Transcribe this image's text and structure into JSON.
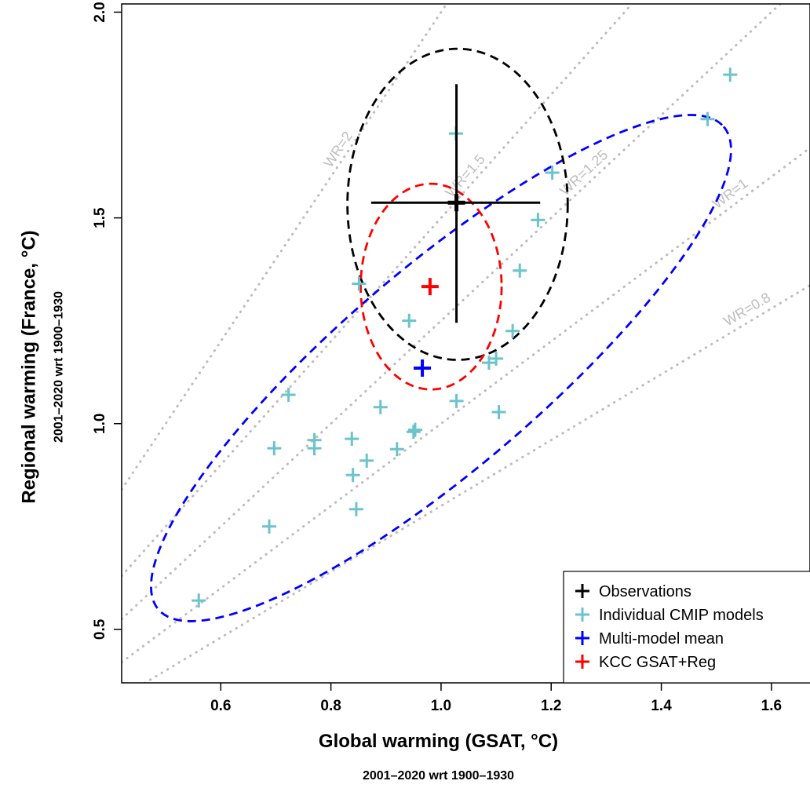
{
  "chart_data": {
    "type": "scatter",
    "xlabel": "Global warming (GSAT, °C)",
    "xlabel_sub": "2001–2020  wrt  1900–1930",
    "ylabel": "Regional warming (France, °C)",
    "ylabel_sub": "2001–2020  wrt  1900–1930",
    "xlim": [
      0.42,
      1.67
    ],
    "ylim": [
      0.37,
      2.02
    ],
    "x_ticks": [
      {
        "value": 0.6,
        "label": "0.6"
      },
      {
        "value": 0.8,
        "label": "0.8"
      },
      {
        "value": 1.0,
        "label": "1.0"
      },
      {
        "value": 1.2,
        "label": "1.2"
      },
      {
        "value": 1.4,
        "label": "1.4"
      },
      {
        "value": 1.6,
        "label": "1.6"
      }
    ],
    "y_ticks": [
      {
        "value": 0.5,
        "label": "0.5"
      },
      {
        "value": 1.0,
        "label": "1.0"
      },
      {
        "value": 1.5,
        "label": "1.5"
      },
      {
        "value": 2.0,
        "label": "2.0"
      }
    ],
    "grid": false,
    "legend_position": "bottom-right",
    "reference_lines": [
      {
        "label": "WR=2",
        "slope": 2
      },
      {
        "label": "WR=1.5",
        "slope": 1.5
      },
      {
        "label": "WR=1.25",
        "slope": 1.25
      },
      {
        "label": "WR=1",
        "slope": 1
      },
      {
        "label": "WR=0.8",
        "slope": 0.8
      }
    ],
    "observations": {
      "name": "Observations",
      "color": "#000000",
      "x": 1.028,
      "y": 1.537,
      "x_interval": [
        0.873,
        1.18
      ],
      "y_interval": [
        1.245,
        1.825
      ],
      "ellipse": {
        "cx": 1.03,
        "cy": 1.533,
        "rx": 0.2,
        "ry": 0.378
      }
    },
    "models": {
      "name": "Individual CMIP models",
      "color": "#6cc3cb",
      "points": [
        {
          "x": 0.56,
          "y": 0.57
        },
        {
          "x": 0.688,
          "y": 0.75
        },
        {
          "x": 0.697,
          "y": 0.94
        },
        {
          "x": 0.723,
          "y": 1.07
        },
        {
          "x": 0.77,
          "y": 0.96
        },
        {
          "x": 0.77,
          "y": 0.94
        },
        {
          "x": 0.838,
          "y": 0.963
        },
        {
          "x": 0.84,
          "y": 0.875
        },
        {
          "x": 0.846,
          "y": 0.792
        },
        {
          "x": 0.851,
          "y": 1.34
        },
        {
          "x": 0.865,
          "y": 0.91
        },
        {
          "x": 0.89,
          "y": 1.04
        },
        {
          "x": 0.92,
          "y": 0.938
        },
        {
          "x": 0.942,
          "y": 1.25
        },
        {
          "x": 0.95,
          "y": 0.98
        },
        {
          "x": 0.953,
          "y": 0.985
        },
        {
          "x": 1.027,
          "y": 1.705
        },
        {
          "x": 1.028,
          "y": 1.055
        },
        {
          "x": 1.087,
          "y": 1.148
        },
        {
          "x": 1.1,
          "y": 1.158
        },
        {
          "x": 1.105,
          "y": 1.028
        },
        {
          "x": 1.13,
          "y": 1.225
        },
        {
          "x": 1.143,
          "y": 1.372
        },
        {
          "x": 1.176,
          "y": 1.495
        },
        {
          "x": 1.202,
          "y": 1.61
        },
        {
          "x": 1.484,
          "y": 1.74
        },
        {
          "x": 1.525,
          "y": 1.848
        }
      ]
    },
    "multi_model_mean": {
      "name": "Multi-model mean",
      "color": "#0000ff",
      "x": 0.966,
      "y": 1.135,
      "ellipse": {
        "cx": 1.0,
        "cy": 1.135,
        "rx": 0.675,
        "ry": 0.243,
        "angle_deg": -40.5
      }
    },
    "kcc": {
      "name": "KCC GSAT+Reg",
      "color": "#ff0000",
      "x": 0.98,
      "y": 1.333,
      "ellipse": {
        "cx": 0.982,
        "cy": 1.333,
        "rx": 0.128,
        "ry": 0.25
      }
    }
  }
}
